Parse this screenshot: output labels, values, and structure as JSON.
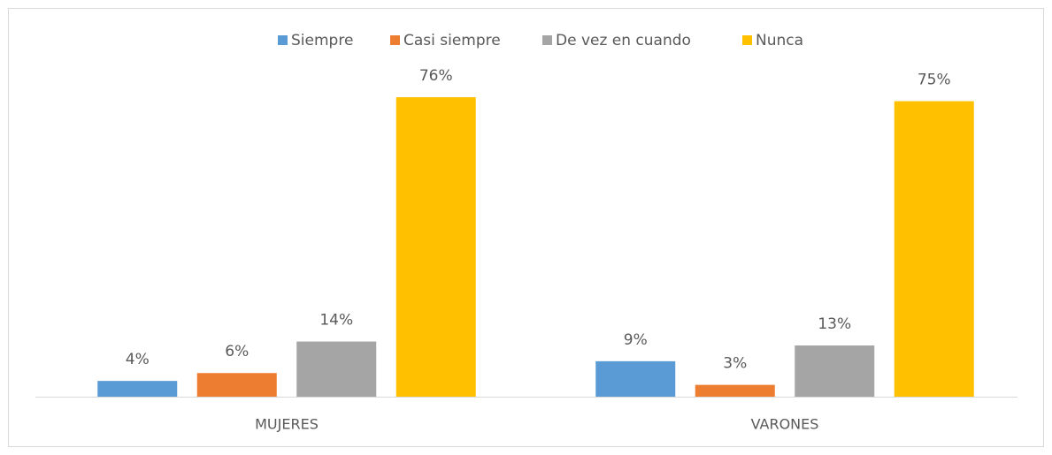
{
  "chart_data": {
    "type": "bar",
    "categories": [
      "MUJERES",
      "VARONES"
    ],
    "series": [
      {
        "name": "Siempre",
        "color": "#5b9bd5",
        "values": [
          4,
          9
        ],
        "value_labels": [
          "4%",
          "9%"
        ]
      },
      {
        "name": "Casi siempre",
        "color": "#ed7d31",
        "values": [
          6,
          3
        ],
        "value_labels": [
          "6%",
          "3%"
        ]
      },
      {
        "name": "De vez en cuando",
        "color": "#a5a5a5",
        "values": [
          14,
          13
        ],
        "value_labels": [
          "14%",
          "13%"
        ]
      },
      {
        "name": "Nunca",
        "color": "#ffc000",
        "values": [
          76,
          75
        ],
        "value_labels": [
          "76%",
          "75%"
        ]
      }
    ],
    "legend": "top"
  }
}
